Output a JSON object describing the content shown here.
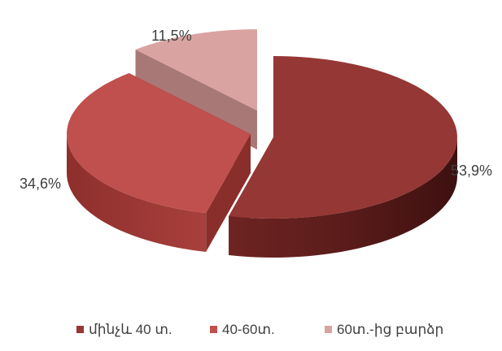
{
  "chart_data": {
    "type": "pie",
    "title": "",
    "categories": [
      "մինչև 40 տ.",
      "40-60տ.",
      "60տ.-ից բարձր"
    ],
    "values": [
      53.9,
      34.6,
      11.5
    ],
    "labels": [
      "53,9%",
      "34,6%",
      "11,5%"
    ],
    "colors": [
      "#953735",
      "#C0504D",
      "#D9A3A2"
    ],
    "style": "3d-exploded",
    "legend_position": "bottom"
  }
}
